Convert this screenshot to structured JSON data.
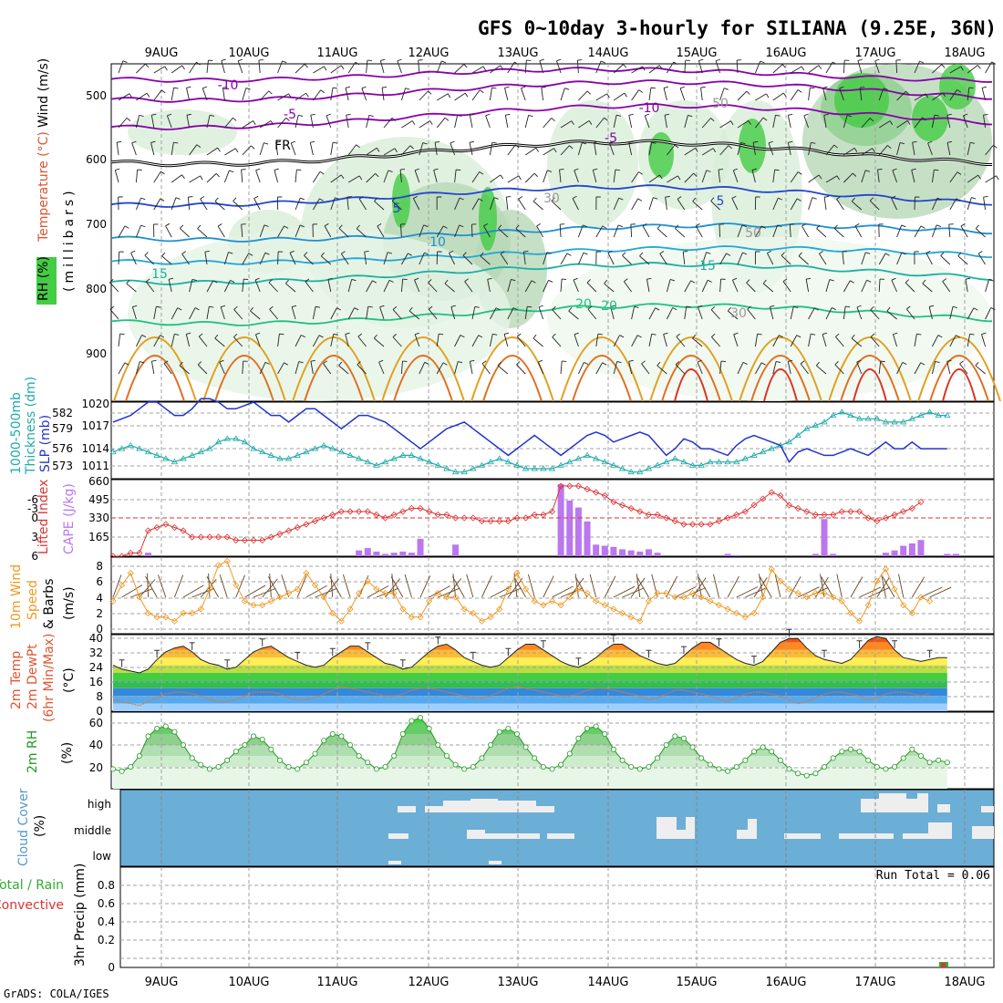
{
  "title": "GFS 0~10day 3-hourly for SILIANA (9.25E, 36N)",
  "footer": "GrADS: COLA/IGES",
  "dates": [
    "9AUG",
    "10AUG",
    "11AUG",
    "12AUG",
    "13AUG",
    "14AUG",
    "15AUG",
    "16AUG",
    "17AUG",
    "18AUG"
  ],
  "colors": {
    "grid": "#a0a0a0",
    "rh_fill": "#bfe6bf",
    "rh_dark": "#8dcf8d",
    "rh_green": "#44cc44",
    "freezing": "#000000",
    "purple": "#8800aa",
    "blue": "#2244cc",
    "cyan": "#22aadd",
    "teal": "#22bbaa",
    "warm": "#e0a020",
    "hot": "#dd3322",
    "slp": "#2233cc",
    "thick": "#22aaaa",
    "li": "#dd3333",
    "cape": "#bb77ee",
    "wind": "#ee9922",
    "barb": "#664422",
    "rh2m": "#229922",
    "cloud_bg": "#6baed6",
    "cloud_white": "#eeeeee",
    "precip_rain": "#33aa33",
    "precip_conv": "#dd3333"
  },
  "panels": {
    "upper": {
      "ylabels": [
        "Temperature (°C)",
        "Wind (m/s)",
        "(millibars)",
        "RH (%)"
      ],
      "levels": [
        "500",
        "600",
        "700",
        "800",
        "900"
      ],
      "contour_labels": [
        "-10",
        "-5",
        "FR",
        "5",
        "10",
        "15",
        "20",
        "-10",
        "-5",
        "5",
        "15",
        "20",
        "30",
        "50",
        "50",
        "30"
      ]
    },
    "pressure": {
      "ylabels": [
        "1000-500mb",
        "Thickness (dm)",
        "SLP (mb)"
      ],
      "ticks_left": [
        "582",
        "579",
        "576",
        "573"
      ],
      "ticks_right": [
        "1020",
        "1017",
        "1014",
        "1011"
      ]
    },
    "stability": {
      "ylabels": [
        "Lifted Index",
        "CAPE (J/kg)"
      ],
      "ticks_left": [
        "-6",
        "-3",
        "0",
        "3",
        "6"
      ],
      "ticks_right": [
        "660",
        "495",
        "330",
        "165"
      ]
    },
    "wind10m": {
      "ylabels": [
        "10m Wind",
        "Speed",
        "(m/s)",
        "& Barbs"
      ],
      "ticks": [
        "8",
        "6",
        "4",
        "2",
        "0"
      ]
    },
    "temp2m": {
      "ylabels": [
        "2m Temp",
        "2m DewPt",
        "(6hr Min/Max)",
        "(°C)"
      ],
      "ticks": [
        "40",
        "32",
        "24",
        "16",
        "8",
        "0"
      ]
    },
    "rh2m": {
      "ylabels": [
        "2m RH",
        "(%)"
      ],
      "ticks": [
        "60",
        "40",
        "20"
      ]
    },
    "cloud": {
      "ylabels": [
        "Cloud Cover",
        "(%)"
      ],
      "levels": [
        "high",
        "middle",
        "low"
      ]
    },
    "precip": {
      "ylabels": [
        "Total / Rain",
        "Convective",
        "3hr Precip (mm)"
      ],
      "ticks": [
        "0.8",
        "0.6",
        "0.4",
        "0.2",
        "0"
      ],
      "run_total": "Run Total = 0.06"
    }
  },
  "chart_data": {
    "type": "line",
    "x_step_hours": 3,
    "x_start": "8AUG 15Z",
    "thickness_dm": [
      575.5,
      576,
      576.5,
      576,
      575.5,
      575,
      574.5,
      574,
      574.5,
      575,
      575.5,
      576,
      577,
      577.5,
      577.5,
      577,
      576,
      575.5,
      575,
      574.5,
      574.5,
      575,
      575.5,
      576,
      576.5,
      576,
      575.5,
      575,
      574.5,
      574,
      573.5,
      574,
      574.5,
      575,
      575,
      574.5,
      574,
      573.5,
      573,
      572.5,
      572.5,
      573,
      573.5,
      574,
      574.5,
      574,
      573.5,
      573,
      573,
      573,
      573,
      573.5,
      574,
      574.5,
      575,
      574.5,
      574,
      573.5,
      573,
      572.5,
      572.5,
      573,
      573.5,
      574,
      574.5,
      574,
      573.5,
      573.5,
      574,
      574,
      574,
      574,
      574.5,
      575,
      575.5,
      576,
      576.5,
      577,
      578,
      579,
      579.5,
      580,
      581,
      581.5,
      581,
      580.5,
      580.5,
      580.5,
      580,
      580,
      580,
      580.5,
      581,
      581.5,
      581,
      581
    ],
    "slp_mb": [
      1017,
      1017.5,
      1018,
      1019,
      1020,
      1020,
      1019,
      1018,
      1018,
      1019,
      1020.5,
      1020.5,
      1020,
      1019,
      1019,
      1019.5,
      1020,
      1019,
      1018,
      1018,
      1017,
      1018,
      1019,
      1019,
      1018,
      1017,
      1016,
      1017,
      1018,
      1018,
      1017.5,
      1017,
      1016,
      1015,
      1014,
      1013,
      1014,
      1015,
      1016,
      1016.5,
      1017,
      1016,
      1015,
      1014,
      1013,
      1012,
      1013,
      1014,
      1015,
      1014,
      1013,
      1012,
      1013,
      1014,
      1015,
      1015.5,
      1015,
      1014,
      1014.5,
      1015,
      1015.5,
      1015,
      1013.5,
      1012,
      1013,
      1014.5,
      1014,
      1013,
      1013,
      1012.5,
      1012,
      1013.5,
      1014.5,
      1015,
      1014.5,
      1014,
      1013.5,
      1011,
      1012.5,
      1013,
      1012.5,
      1012,
      1012,
      1012.5,
      1013,
      1012.5,
      1012,
      1013,
      1014,
      1013,
      1013,
      1014,
      1013,
      1013,
      1013,
      1013
    ],
    "lifted_index": [
      6,
      6,
      5.5,
      5.5,
      2,
      1.5,
      1,
      1.5,
      2,
      3,
      3,
      3,
      3,
      3,
      3.5,
      3.5,
      3.5,
      3.5,
      3,
      2.5,
      2,
      1.5,
      1,
      0.5,
      0,
      -0.5,
      -1,
      -1,
      -1,
      -1,
      -0.5,
      0,
      -0.5,
      -1,
      -1.5,
      -1.5,
      -1,
      -0.5,
      -0.5,
      0,
      0,
      0,
      0.5,
      0.5,
      0.5,
      0.5,
      0,
      0,
      -0.5,
      -0.5,
      -1,
      -5,
      -5,
      -5,
      -4.5,
      -4,
      -3.5,
      -2.5,
      -2,
      -1.5,
      -1,
      -0.5,
      -0.5,
      0,
      0.5,
      1,
      1,
      1,
      1,
      0.5,
      0,
      -0.5,
      -1,
      -2,
      -3,
      -4,
      -3.5,
      -2,
      -1.5,
      -1,
      -0.5,
      -0.5,
      -0.5,
      -1,
      -1,
      -1,
      0,
      0.5,
      0,
      -0.5,
      -1,
      -1.5,
      -2.5
    ],
    "cape_jkg": [
      0,
      0,
      0,
      0,
      30,
      0,
      0,
      0,
      0,
      0,
      0,
      0,
      0,
      0,
      0,
      0,
      0,
      0,
      0,
      0,
      0,
      0,
      0,
      0,
      0,
      0,
      0,
      0,
      50,
      70,
      40,
      20,
      30,
      40,
      30,
      150,
      0,
      0,
      0,
      100,
      0,
      0,
      0,
      0,
      0,
      0,
      0,
      0,
      0,
      0,
      0,
      620,
      480,
      420,
      300,
      100,
      90,
      80,
      60,
      50,
      40,
      60,
      30,
      0,
      0,
      0,
      0,
      0,
      0,
      0,
      20,
      10,
      0,
      0,
      0,
      0,
      0,
      0,
      0,
      0,
      20,
      320,
      20,
      0,
      0,
      0,
      0,
      0,
      30,
      50,
      90,
      110,
      140,
      0,
      0,
      20,
      20
    ],
    "wind10m_ms": [
      3.5,
      5.5,
      7,
      4,
      2,
      1.5,
      1.5,
      1,
      2,
      2,
      2.5,
      5,
      8,
      8.5,
      5.5,
      3.5,
      3,
      3,
      3.5,
      4,
      4.5,
      5,
      7,
      5.5,
      4,
      2,
      1,
      2.5,
      4.5,
      6,
      5,
      4.5,
      4.5,
      2.5,
      1.5,
      1.5,
      3.5,
      4.5,
      4,
      4,
      2.5,
      2,
      1,
      1.5,
      2.5,
      5,
      7,
      5,
      3.5,
      3,
      3.5,
      3,
      4,
      5,
      4.5,
      3.5,
      3,
      2.5,
      2,
      1.5,
      1,
      3.5,
      4.5,
      4.5,
      4,
      4,
      4.5,
      4,
      3.5,
      3,
      2.5,
      2,
      1.5,
      2,
      4,
      7.5,
      6,
      5,
      4.5,
      4,
      4.5,
      4.5,
      4,
      3.5,
      2,
      1,
      3,
      6,
      7.5,
      5,
      3,
      2,
      4,
      3.5
    ],
    "temp2m_c": [
      24,
      22,
      21,
      20,
      22,
      27,
      31,
      33,
      34,
      31,
      27,
      25,
      24,
      22,
      23,
      27,
      31,
      33,
      34,
      31,
      28,
      26,
      24,
      23,
      24,
      28,
      31,
      34,
      34,
      31,
      28,
      25,
      24,
      22,
      23,
      27,
      31,
      34,
      35,
      32,
      28,
      26,
      24,
      23,
      24,
      28,
      32,
      35,
      35,
      32,
      29,
      26,
      24,
      23,
      25,
      28,
      32,
      35,
      35,
      32,
      29,
      27,
      25,
      24,
      25,
      29,
      33,
      36,
      36,
      33,
      30,
      27,
      25,
      24,
      26,
      31,
      36,
      38,
      38,
      33,
      29,
      27,
      26,
      25,
      27,
      32,
      37,
      39,
      38,
      32,
      28,
      27,
      26,
      27,
      28,
      28
    ],
    "dewpt2m_c": [
      6,
      5,
      4,
      3,
      5,
      7,
      9,
      10,
      10,
      9,
      8,
      6,
      5,
      5,
      6,
      8,
      10,
      10,
      10,
      9,
      7,
      6,
      6,
      7,
      9,
      11,
      13,
      12,
      11,
      10,
      9,
      8,
      8,
      9,
      11,
      12,
      12,
      11,
      10,
      9,
      8,
      7,
      7,
      8,
      10,
      12,
      13,
      12,
      11,
      10,
      9,
      8,
      8,
      9,
      11,
      12,
      12,
      11,
      10,
      9,
      8,
      6,
      7,
      9,
      11,
      11,
      10,
      9,
      8,
      6,
      5,
      7,
      9,
      10,
      10,
      9,
      8,
      6,
      4,
      5,
      7,
      9,
      10,
      10,
      9,
      8,
      6,
      7,
      9,
      10,
      10,
      9,
      8,
      9
    ],
    "rh2m_pct": [
      18,
      16,
      20,
      30,
      48,
      55,
      57,
      52,
      40,
      28,
      22,
      18,
      20,
      26,
      34,
      40,
      48,
      45,
      36,
      26,
      20,
      18,
      24,
      32,
      44,
      50,
      48,
      40,
      30,
      24,
      18,
      20,
      30,
      50,
      62,
      65,
      55,
      40,
      30,
      22,
      18,
      20,
      28,
      40,
      52,
      55,
      50,
      38,
      28,
      20,
      18,
      22,
      32,
      46,
      55,
      57,
      50,
      36,
      26,
      20,
      18,
      20,
      28,
      40,
      48,
      46,
      38,
      28,
      22,
      18,
      16,
      20,
      26,
      34,
      38,
      34,
      26,
      18,
      14,
      12,
      14,
      20,
      28,
      34,
      36,
      34,
      26,
      20,
      18,
      20,
      28,
      36,
      30,
      24,
      26,
      24
    ],
    "precip_total_mm": {
      "index": 90,
      "value": 0.06
    },
    "lifted_index_range": [
      6,
      -6
    ],
    "cape_range": [
      0,
      660
    ],
    "slp_range": [
      1008.5,
      1020
    ],
    "thickness_range": [
      571.5,
      583
    ],
    "wind_range": [
      0,
      9
    ],
    "temp_range": [
      0,
      40
    ],
    "rh_range": [
      0,
      70
    ],
    "precip_range": [
      0,
      1
    ]
  }
}
